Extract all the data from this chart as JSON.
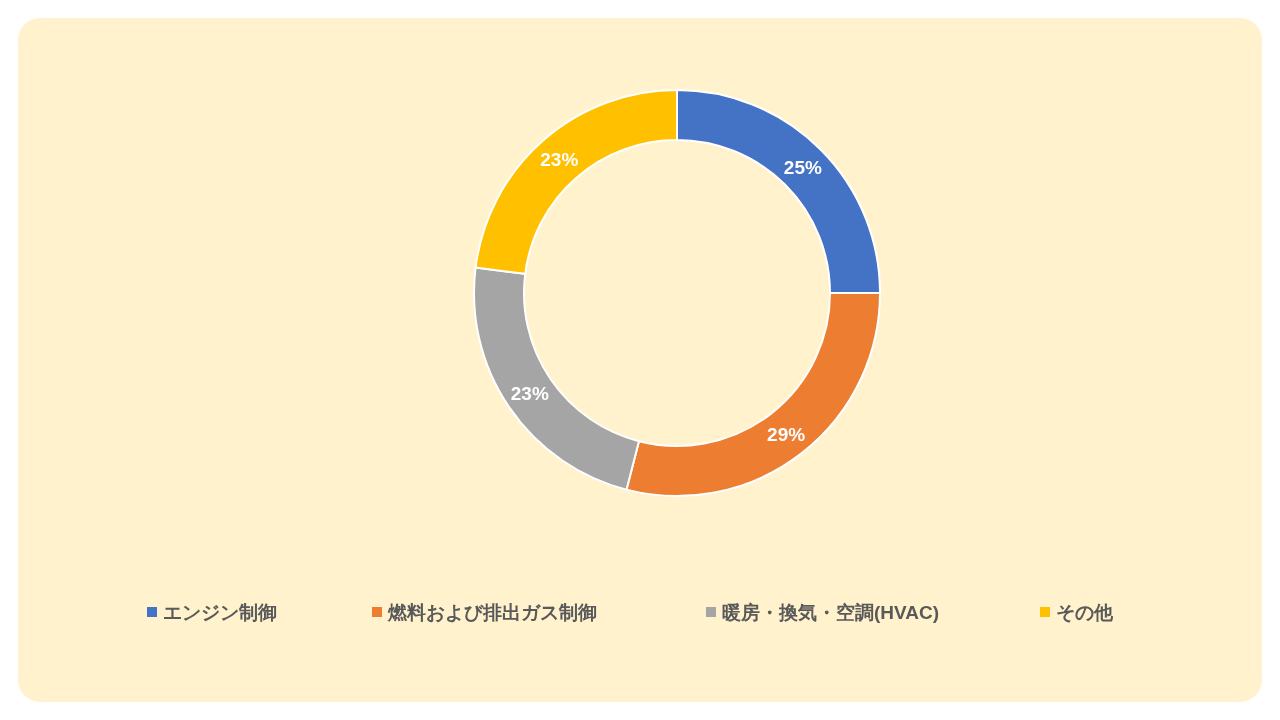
{
  "chart_data": {
    "type": "donut",
    "categories": [
      "エンジン制御",
      "燃料および排出ガス制御",
      "暖房・換気・空調(HVAC)",
      "その他"
    ],
    "values": [
      25,
      29,
      23,
      23
    ],
    "colors": [
      "#4472c4",
      "#ed7d31",
      "#a5a5a5",
      "#ffc000"
    ],
    "value_labels": [
      "25%",
      "29%",
      "23%",
      "23%"
    ],
    "legend": "bottom"
  }
}
